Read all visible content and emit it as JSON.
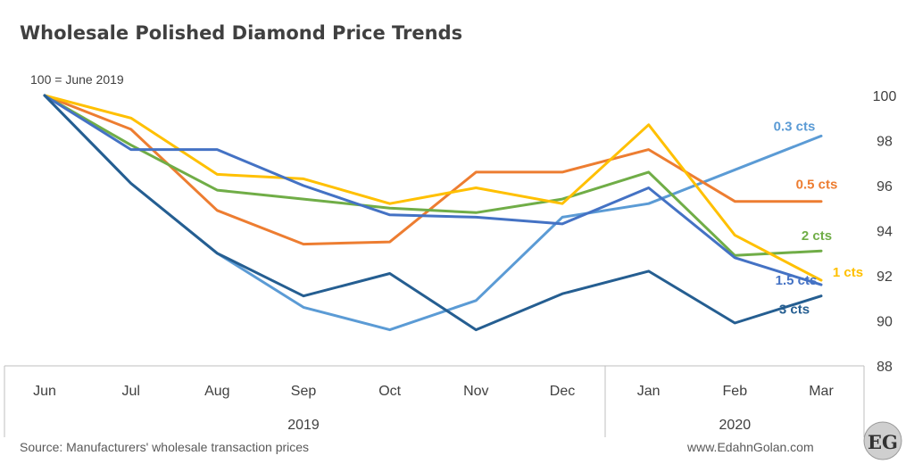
{
  "chart_data": {
    "type": "line",
    "title": "Wholesale Polished Diamond Price Trends",
    "note": "100 = June 2019",
    "categories": [
      "Jun",
      "Jul",
      "Aug",
      "Sep",
      "Oct",
      "Nov",
      "Dec",
      "Jan",
      "Feb",
      "Mar"
    ],
    "year_groups": [
      {
        "label": "2019",
        "span": 7
      },
      {
        "label": "2020",
        "span": 3
      }
    ],
    "ylim": [
      88,
      100
    ],
    "yticks": [
      88,
      90,
      92,
      94,
      96,
      98,
      100
    ],
    "series": [
      {
        "name": "0.3 cts",
        "color": "#5B9BD5",
        "values": [
          100,
          96.1,
          93.0,
          90.6,
          89.6,
          90.9,
          94.6,
          95.2,
          96.7,
          98.2
        ]
      },
      {
        "name": "0.5 cts",
        "color": "#ED7D31",
        "values": [
          100,
          98.5,
          94.9,
          93.4,
          93.5,
          96.6,
          96.6,
          97.6,
          95.3,
          95.3
        ]
      },
      {
        "name": "2 cts",
        "color": "#70AD47",
        "values": [
          100,
          97.8,
          95.8,
          95.4,
          95.0,
          94.8,
          95.4,
          96.6,
          92.9,
          93.1
        ]
      },
      {
        "name": "1 cts",
        "color": "#FFC000",
        "values": [
          100,
          99.0,
          96.5,
          96.3,
          95.2,
          95.9,
          95.2,
          98.7,
          93.8,
          91.8
        ]
      },
      {
        "name": "1.5 cts",
        "color": "#4472C4",
        "values": [
          100,
          97.6,
          97.6,
          96.0,
          94.7,
          94.6,
          94.3,
          95.9,
          92.8,
          91.6
        ]
      },
      {
        "name": "3 cts",
        "color": "#255E91",
        "values": [
          100,
          96.1,
          93.0,
          91.1,
          92.1,
          89.6,
          91.2,
          92.2,
          89.9,
          91.1
        ]
      }
    ]
  },
  "footer": {
    "source": "Source: Manufacturers' wholesale transaction prices",
    "website": "www.EdahnGolan.com",
    "logo": "EG"
  }
}
